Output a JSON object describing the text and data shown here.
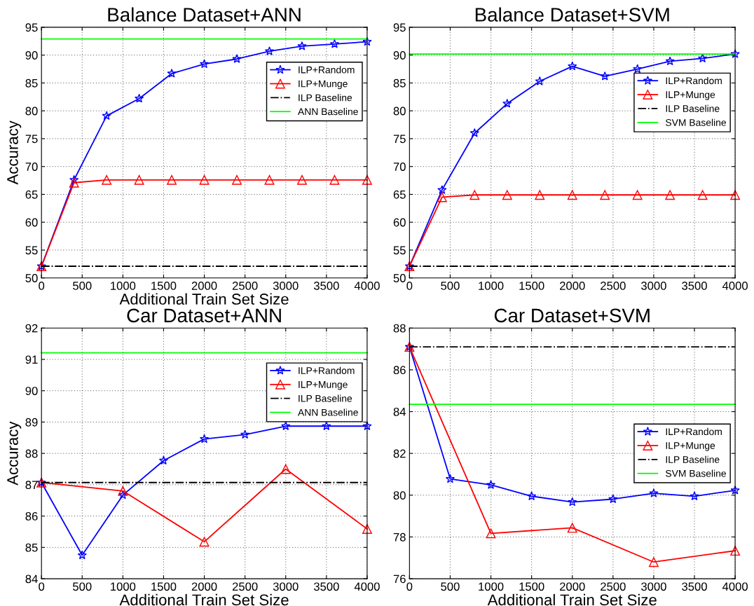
{
  "chart_data": [
    {
      "type": "line",
      "title": "Balance Dataset+ANN",
      "xlabel": "Additional Train Set Size",
      "ylabel": "Accuracy",
      "x": [
        0,
        400,
        800,
        1200,
        1600,
        2000,
        2400,
        2800,
        3200,
        3600,
        4000
      ],
      "xlim": [
        0,
        4000
      ],
      "xticks": [
        0,
        500,
        1000,
        1500,
        2000,
        2500,
        3000,
        3500,
        4000
      ],
      "ylim": [
        50,
        95
      ],
      "yticks": [
        50,
        55,
        60,
        65,
        70,
        75,
        80,
        85,
        90,
        95
      ],
      "grid": true,
      "legend": "top right",
      "series": [
        {
          "name": "ILP+Random",
          "color": "#0000ff",
          "marker": "star",
          "line_style": "solid",
          "values": [
            52.1,
            67.6,
            79.1,
            82.2,
            86.7,
            88.4,
            89.3,
            90.7,
            91.6,
            92.0,
            92.4
          ]
        },
        {
          "name": "ILP+Munge",
          "color": "#ff0000",
          "marker": "triangle",
          "line_style": "solid",
          "values": [
            52.1,
            67.1,
            67.6,
            67.6,
            67.6,
            67.6,
            67.6,
            67.6,
            67.6,
            67.6,
            67.6
          ]
        },
        {
          "name": "ILP Baseline",
          "color": "#000000",
          "marker": "none",
          "line_style": "dashdot",
          "x": [
            0,
            4000
          ],
          "values": [
            52.1,
            52.1
          ]
        },
        {
          "name": "ANN Baseline",
          "color": "#00ff00",
          "marker": "none",
          "line_style": "solid",
          "x": [
            0,
            4000
          ],
          "values": [
            92.9,
            92.9
          ]
        }
      ]
    },
    {
      "type": "line",
      "title": "Balance Dataset+SVM",
      "x": [
        0,
        400,
        800,
        1200,
        1600,
        2000,
        2400,
        2800,
        3200,
        3600,
        4000
      ],
      "xlim": [
        0,
        4000
      ],
      "xticks": [
        0,
        500,
        1000,
        1500,
        2000,
        2500,
        3000,
        3500,
        4000
      ],
      "ylim": [
        50,
        95
      ],
      "yticks": [
        50,
        55,
        60,
        65,
        70,
        75,
        80,
        85,
        90,
        95
      ],
      "grid": true,
      "legend": "right",
      "series": [
        {
          "name": "ILP+Random",
          "color": "#0000ff",
          "marker": "star",
          "line_style": "solid",
          "values": [
            52.1,
            65.8,
            76.0,
            81.3,
            85.3,
            88.0,
            86.2,
            87.5,
            88.9,
            89.4,
            90.2
          ]
        },
        {
          "name": "ILP+Munge",
          "color": "#ff0000",
          "marker": "triangle",
          "line_style": "solid",
          "values": [
            52.1,
            64.5,
            64.9,
            64.9,
            64.9,
            64.9,
            64.9,
            64.9,
            64.9,
            64.9,
            64.9
          ]
        },
        {
          "name": "ILP Baseline",
          "color": "#000000",
          "marker": "none",
          "line_style": "dashdot",
          "x": [
            0,
            4000
          ],
          "values": [
            52.1,
            52.1
          ]
        },
        {
          "name": "SVM Baseline",
          "color": "#00ff00",
          "marker": "none",
          "line_style": "solid",
          "x": [
            0,
            4000
          ],
          "values": [
            90.2,
            90.2
          ]
        }
      ]
    },
    {
      "type": "line",
      "title": "Car Dataset+ANN",
      "xlabel": "Additional Train Set Size",
      "ylabel": "Accuracy",
      "x": [
        0,
        500,
        1000,
        1500,
        2000,
        2500,
        3000,
        3500,
        4000
      ],
      "xlim": [
        0,
        4000
      ],
      "xticks": [
        0,
        500,
        1000,
        1500,
        2000,
        2500,
        3000,
        3500,
        4000
      ],
      "ylim": [
        84,
        92
      ],
      "yticks": [
        84,
        85,
        86,
        87,
        88,
        89,
        90,
        91,
        92
      ],
      "grid": true,
      "legend": "top right",
      "series": [
        {
          "name": "ILP+Random",
          "color": "#0000ff",
          "marker": "star",
          "line_style": "solid",
          "values": [
            87.07,
            84.75,
            86.67,
            87.77,
            88.46,
            88.6,
            88.87,
            88.87,
            88.87
          ]
        },
        {
          "name": "ILP+Munge",
          "color": "#ff0000",
          "marker": "triangle",
          "line_style": "solid",
          "x": [
            0,
            1000,
            2000,
            3000,
            4000
          ],
          "values": [
            87.07,
            86.8,
            85.18,
            87.5,
            85.59
          ]
        },
        {
          "name": "ILP Baseline",
          "color": "#000000",
          "marker": "none",
          "line_style": "dashdot",
          "x": [
            0,
            4000
          ],
          "values": [
            87.07,
            87.07
          ]
        },
        {
          "name": "ANN Baseline",
          "color": "#00ff00",
          "marker": "none",
          "line_style": "solid",
          "x": [
            0,
            4000
          ],
          "values": [
            91.21,
            91.21
          ]
        }
      ]
    },
    {
      "type": "line",
      "title": "Car Dataset+SVM",
      "xlabel": "Additional Train Set Size",
      "x": [
        0,
        500,
        1000,
        1500,
        2000,
        2500,
        3000,
        3500,
        4000
      ],
      "xlim": [
        0,
        4000
      ],
      "xticks": [
        0,
        500,
        1000,
        1500,
        2000,
        2500,
        3000,
        3500,
        4000
      ],
      "ylim": [
        76,
        88
      ],
      "yticks": [
        76,
        78,
        80,
        82,
        84,
        86,
        88
      ],
      "grid": true,
      "legend": "center right",
      "series": [
        {
          "name": "ILP+Random",
          "color": "#0000ff",
          "marker": "star",
          "line_style": "solid",
          "values": [
            87.1,
            80.78,
            80.49,
            79.95,
            79.67,
            79.81,
            80.09,
            79.95,
            80.23
          ]
        },
        {
          "name": "ILP+Munge",
          "color": "#ff0000",
          "marker": "triangle",
          "line_style": "solid",
          "x": [
            0,
            1000,
            2000,
            3000,
            4000
          ],
          "values": [
            87.1,
            78.17,
            78.44,
            76.8,
            77.34
          ]
        },
        {
          "name": "ILP Baseline",
          "color": "#000000",
          "marker": "none",
          "line_style": "dashdot",
          "x": [
            0,
            4000
          ],
          "values": [
            87.1,
            87.1
          ]
        },
        {
          "name": "SVM Baseline",
          "color": "#00ff00",
          "marker": "none",
          "line_style": "solid",
          "x": [
            0,
            4000
          ],
          "values": [
            84.35,
            84.35
          ]
        }
      ]
    }
  ]
}
